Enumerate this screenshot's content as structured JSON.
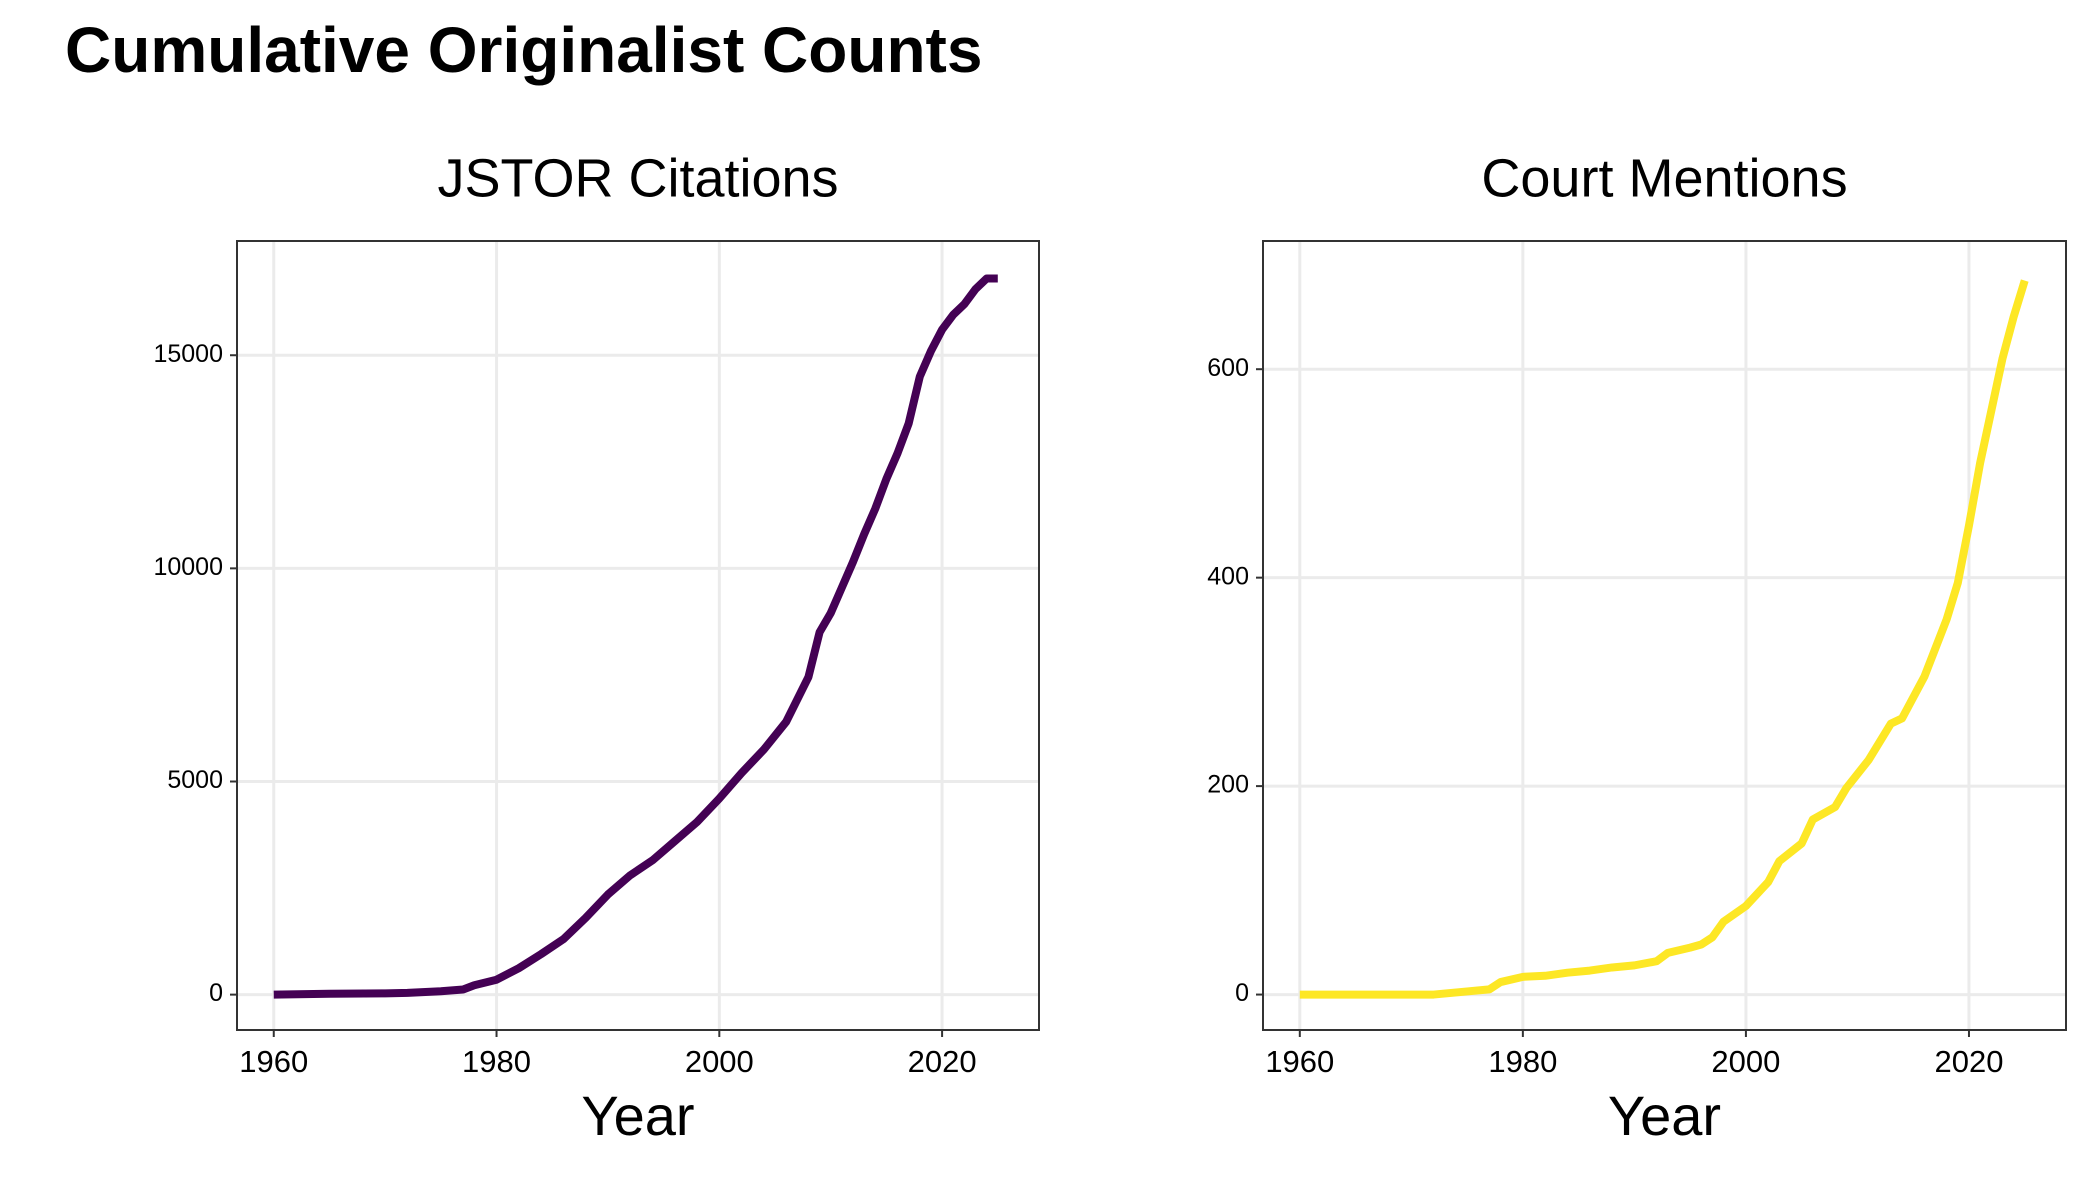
{
  "title": "Cumulative Originalist Counts",
  "chart_data": [
    {
      "type": "line",
      "title": "JSTOR Citations",
      "x_label": "Year",
      "xlim": [
        1956.7,
        2028.7
      ],
      "xticks": [
        1960,
        1980,
        2000,
        2020
      ],
      "ylim": [
        -830,
        17680
      ],
      "yticks": [
        0,
        5000,
        10000,
        15000
      ],
      "grid": true,
      "series": [
        {
          "name": "JSTOR Citations",
          "color": "#440154",
          "x": [
            1960,
            1965,
            1970,
            1972,
            1975,
            1977,
            1978,
            1980,
            1982,
            1984,
            1986,
            1988,
            1990,
            1992,
            1994,
            1996,
            1998,
            2000,
            2002,
            2004,
            2006,
            2008,
            2009,
            2010,
            2011,
            2012,
            2013,
            2014,
            2015,
            2016,
            2017,
            2018,
            2019,
            2020,
            2021,
            2022,
            2023,
            2024,
            2025
          ],
          "values": [
            0,
            20,
            30,
            40,
            80,
            120,
            220,
            350,
            620,
            950,
            1300,
            1800,
            2350,
            2800,
            3150,
            3600,
            4050,
            4600,
            5200,
            5750,
            6400,
            7450,
            8500,
            8950,
            9550,
            10150,
            10800,
            11400,
            12100,
            12700,
            13400,
            14500,
            15100,
            15600,
            15950,
            16200,
            16550,
            16800,
            16800
          ]
        }
      ]
    },
    {
      "type": "line",
      "title": "Court Mentions",
      "x_label": "Year",
      "xlim": [
        1956.7,
        2028.7
      ],
      "xticks": [
        1960,
        1980,
        2000,
        2020
      ],
      "ylim": [
        -34,
        723
      ],
      "yticks": [
        0,
        200,
        400,
        600
      ],
      "grid": true,
      "series": [
        {
          "name": "Court Mentions",
          "color": "#fde725",
          "x": [
            1960,
            1972,
            1975,
            1977,
            1978,
            1980,
            1982,
            1984,
            1986,
            1988,
            1990,
            1992,
            1993,
            1995,
            1996,
            1997,
            1998,
            2000,
            2002,
            2003,
            2005,
            2006,
            2008,
            2009,
            2011,
            2013,
            2014,
            2016,
            2018,
            2019,
            2020,
            2021,
            2022,
            2023,
            2024,
            2025
          ],
          "values": [
            0,
            0,
            3,
            5,
            12,
            17,
            18,
            21,
            23,
            26,
            28,
            32,
            40,
            45,
            48,
            55,
            70,
            85,
            108,
            128,
            145,
            168,
            180,
            198,
            225,
            260,
            265,
            305,
            360,
            395,
            450,
            510,
            560,
            610,
            650,
            685
          ]
        }
      ]
    }
  ]
}
